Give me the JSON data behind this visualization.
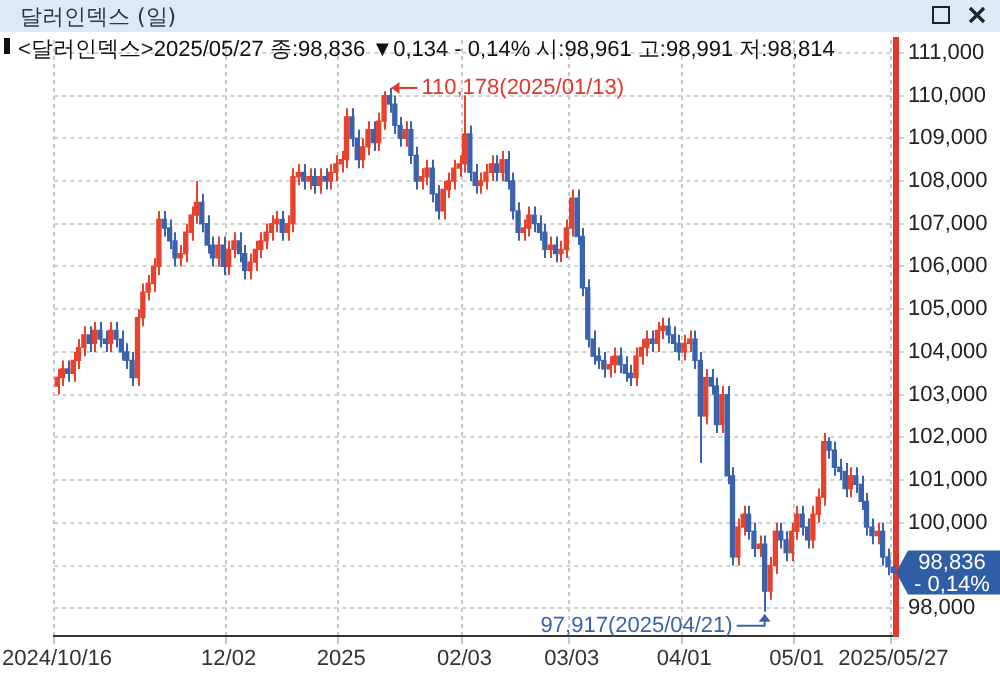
{
  "chart_data": {
    "type": "candlestick",
    "title": "달러인덱스 (일)",
    "subtitle": "<달러인덱스>2025/05/27 종:98,836 ▼0,134 - 0,14% 시:98,961 고:98,991 저:98,814",
    "categories": [
      "2024/10/16",
      null,
      null,
      null,
      null,
      null,
      null,
      null,
      null,
      null,
      null,
      null,
      null,
      null,
      null,
      null,
      null,
      null,
      null,
      null,
      null,
      null,
      null,
      null,
      null,
      null,
      null,
      null,
      null,
      null,
      null,
      null,
      "12/02",
      null,
      null,
      null,
      null,
      null,
      null,
      null,
      null,
      null,
      null,
      null,
      null,
      null,
      null,
      null,
      null,
      null,
      null,
      null,
      null,
      "2025",
      null,
      null,
      null,
      null,
      null,
      null,
      null,
      null,
      null,
      null,
      null,
      null,
      null,
      null,
      null,
      null,
      null,
      null,
      null,
      null,
      null,
      null,
      "02/03",
      null,
      null,
      null,
      null,
      null,
      null,
      null,
      null,
      null,
      null,
      null,
      null,
      null,
      null,
      null,
      null,
      null,
      null,
      null,
      "03/03",
      null,
      null,
      null,
      null,
      null,
      null,
      null,
      null,
      null,
      null,
      null,
      null,
      null,
      null,
      null,
      null,
      null,
      null,
      null,
      null,
      "04/01",
      null,
      null,
      null,
      null,
      null,
      null,
      null,
      null,
      null,
      null,
      null,
      null,
      null,
      null,
      null,
      null,
      null,
      null,
      null,
      null,
      "05/01",
      null,
      null,
      null,
      null,
      null,
      null,
      null,
      null,
      null,
      null,
      null,
      null,
      null,
      null,
      null,
      null,
      null,
      "2025/05/27"
    ],
    "ohlc": [
      [
        103200,
        103600,
        103000,
        103400
      ],
      [
        103400,
        103800,
        103200,
        103600
      ],
      [
        103600,
        103800,
        103300,
        103500
      ],
      [
        103500,
        104000,
        103300,
        103800
      ],
      [
        103800,
        104300,
        103600,
        104100
      ],
      [
        104100,
        104600,
        103900,
        104400
      ],
      [
        104400,
        104600,
        104000,
        104200
      ],
      [
        104200,
        104700,
        104000,
        104500
      ],
      [
        104500,
        104700,
        104100,
        104300
      ],
      [
        104300,
        104500,
        104000,
        104200
      ],
      [
        104200,
        104700,
        104000,
        104500
      ],
      [
        104500,
        104700,
        104100,
        104300
      ],
      [
        104300,
        104500,
        103800,
        104000
      ],
      [
        104000,
        104200,
        103600,
        103800
      ],
      [
        103800,
        104000,
        103200,
        103400
      ],
      [
        103400,
        105000,
        103200,
        104800
      ],
      [
        104800,
        105600,
        104600,
        105400
      ],
      [
        105400,
        105800,
        105200,
        105600
      ],
      [
        105600,
        106200,
        105400,
        106000
      ],
      [
        106000,
        107300,
        105800,
        107100
      ],
      [
        107100,
        107300,
        106700,
        106900
      ],
      [
        106900,
        107100,
        106400,
        106600
      ],
      [
        106600,
        106800,
        106000,
        106200
      ],
      [
        106200,
        106500,
        106000,
        106300
      ],
      [
        106300,
        107000,
        106100,
        106800
      ],
      [
        106800,
        107400,
        106600,
        107200
      ],
      [
        107200,
        108000,
        107000,
        107500
      ],
      [
        107500,
        107700,
        106800,
        107000
      ],
      [
        107000,
        107200,
        106300,
        106500
      ],
      [
        106500,
        106700,
        106000,
        106200
      ],
      [
        106200,
        106700,
        106000,
        106500
      ],
      [
        106500,
        106700,
        105800,
        106000
      ],
      [
        106000,
        106600,
        105800,
        106400
      ],
      [
        106400,
        106800,
        106200,
        106600
      ],
      [
        106600,
        106800,
        106100,
        106300
      ],
      [
        106300,
        106500,
        105700,
        105900
      ],
      [
        105900,
        106300,
        105700,
        106100
      ],
      [
        106100,
        106600,
        105900,
        106400
      ],
      [
        106400,
        106800,
        106200,
        106600
      ],
      [
        106600,
        107000,
        106400,
        106800
      ],
      [
        106800,
        107200,
        106600,
        107000
      ],
      [
        107000,
        107300,
        106800,
        107100
      ],
      [
        107100,
        107300,
        106600,
        106800
      ],
      [
        106800,
        107200,
        106600,
        107000
      ],
      [
        107000,
        108300,
        106800,
        108100
      ],
      [
        108100,
        108400,
        107900,
        108200
      ],
      [
        108200,
        108400,
        107800,
        108000
      ],
      [
        108000,
        108300,
        107800,
        108100
      ],
      [
        108100,
        108300,
        107700,
        107900
      ],
      [
        107900,
        108300,
        107700,
        108100
      ],
      [
        108100,
        108300,
        107800,
        108000
      ],
      [
        108000,
        108400,
        107800,
        108200
      ],
      [
        108200,
        108600,
        108000,
        108400
      ],
      [
        108400,
        108700,
        108200,
        108500
      ],
      [
        108500,
        109700,
        108300,
        109500
      ],
      [
        109500,
        109700,
        108800,
        109000
      ],
      [
        109000,
        109200,
        108300,
        108500
      ],
      [
        108500,
        109000,
        108300,
        108800
      ],
      [
        108800,
        109400,
        108600,
        109200
      ],
      [
        109200,
        109400,
        108700,
        108900
      ],
      [
        108900,
        109600,
        108700,
        109400
      ],
      [
        109400,
        110100,
        109200,
        110000
      ],
      [
        110000,
        110178,
        109600,
        109800
      ],
      [
        109800,
        110000,
        109100,
        109300
      ],
      [
        109300,
        109500,
        108800,
        109000
      ],
      [
        109000,
        109400,
        108800,
        109200
      ],
      [
        109200,
        109400,
        108400,
        108600
      ],
      [
        108600,
        108800,
        107800,
        108000
      ],
      [
        108000,
        108300,
        107800,
        108100
      ],
      [
        108100,
        108500,
        107900,
        108300
      ],
      [
        108300,
        108500,
        107500,
        107700
      ],
      [
        107700,
        107900,
        107100,
        107300
      ],
      [
        107300,
        108000,
        107100,
        107800
      ],
      [
        107800,
        108200,
        107600,
        108000
      ],
      [
        108000,
        108500,
        107800,
        108300
      ],
      [
        108300,
        108600,
        108100,
        108400
      ],
      [
        108400,
        110000,
        108200,
        109100
      ],
      [
        109100,
        109300,
        108000,
        108200
      ],
      [
        108200,
        108400,
        107700,
        107900
      ],
      [
        107900,
        108200,
        107700,
        108000
      ],
      [
        108000,
        108400,
        107800,
        108200
      ],
      [
        108200,
        108600,
        108000,
        108400
      ],
      [
        108400,
        108600,
        108000,
        108200
      ],
      [
        108200,
        108700,
        108000,
        108500
      ],
      [
        108500,
        108700,
        107800,
        108000
      ],
      [
        108000,
        108200,
        107100,
        107300
      ],
      [
        107300,
        107500,
        106600,
        106800
      ],
      [
        106800,
        107100,
        106600,
        106900
      ],
      [
        106900,
        107400,
        106700,
        107200
      ],
      [
        107200,
        107400,
        106800,
        107000
      ],
      [
        107000,
        107200,
        106600,
        106800
      ],
      [
        106800,
        107000,
        106200,
        106400
      ],
      [
        106400,
        106700,
        106200,
        106500
      ],
      [
        106500,
        106700,
        106100,
        106300
      ],
      [
        106300,
        106600,
        106100,
        106400
      ],
      [
        106400,
        107100,
        106200,
        106900
      ],
      [
        106900,
        107800,
        106700,
        107600
      ],
      [
        107600,
        107800,
        106500,
        106700
      ],
      [
        106700,
        106900,
        105300,
        105500
      ],
      [
        105500,
        105700,
        104100,
        104300
      ],
      [
        104300,
        104500,
        103700,
        103900
      ],
      [
        103900,
        104100,
        103600,
        103800
      ],
      [
        103800,
        104000,
        103400,
        103600
      ],
      [
        103600,
        103900,
        103400,
        103700
      ],
      [
        103700,
        104100,
        103500,
        103900
      ],
      [
        103900,
        104100,
        103500,
        103700
      ],
      [
        103700,
        103900,
        103300,
        103500
      ],
      [
        103500,
        103700,
        103200,
        103400
      ],
      [
        103400,
        104100,
        103200,
        103900
      ],
      [
        103900,
        104300,
        103700,
        104100
      ],
      [
        104100,
        104500,
        103900,
        104300
      ],
      [
        104300,
        104500,
        104000,
        104200
      ],
      [
        104200,
        104700,
        104000,
        104500
      ],
      [
        104500,
        104800,
        104300,
        104600
      ],
      [
        104600,
        104800,
        104200,
        104400
      ],
      [
        104400,
        104600,
        104000,
        104200
      ],
      [
        104200,
        104400,
        103800,
        104000
      ],
      [
        104000,
        104400,
        103800,
        104200
      ],
      [
        104200,
        104500,
        104000,
        104300
      ],
      [
        104300,
        104500,
        103600,
        103800
      ],
      [
        103800,
        104000,
        101400,
        102500
      ],
      [
        102500,
        103600,
        102300,
        103400
      ],
      [
        103400,
        103600,
        103000,
        103200
      ],
      [
        103200,
        103400,
        102100,
        102300
      ],
      [
        102300,
        103200,
        102100,
        103000
      ],
      [
        103000,
        103200,
        100900,
        101100
      ],
      [
        101100,
        101300,
        99000,
        99200
      ],
      [
        99200,
        100100,
        99000,
        99900
      ],
      [
        99900,
        100400,
        99700,
        100200
      ],
      [
        100200,
        100400,
        99600,
        99800
      ],
      [
        99800,
        100000,
        99200,
        99400
      ],
      [
        99400,
        99700,
        99200,
        99500
      ],
      [
        99500,
        99700,
        97917,
        98400
      ],
      [
        98400,
        99200,
        98200,
        99000
      ],
      [
        99000,
        100000,
        98800,
        99800
      ],
      [
        99800,
        100000,
        99400,
        99600
      ],
      [
        99600,
        99800,
        99100,
        99300
      ],
      [
        99300,
        100000,
        99100,
        99800
      ],
      [
        99800,
        100400,
        99600,
        100200
      ],
      [
        100200,
        100400,
        99700,
        99900
      ],
      [
        99900,
        100100,
        99400,
        99600
      ],
      [
        99600,
        100400,
        99400,
        100200
      ],
      [
        100200,
        100800,
        100000,
        100600
      ],
      [
        100600,
        102100,
        100400,
        101900
      ],
      [
        101900,
        102000,
        101500,
        101700
      ],
      [
        101700,
        101900,
        101100,
        101300
      ],
      [
        101300,
        101500,
        101000,
        101200
      ],
      [
        101200,
        101400,
        100600,
        100800
      ],
      [
        100800,
        101300,
        100600,
        101100
      ],
      [
        101100,
        101300,
        100700,
        100900
      ],
      [
        100900,
        101100,
        100300,
        100500
      ],
      [
        100500,
        100700,
        99700,
        99900
      ],
      [
        99900,
        100100,
        99500,
        99700
      ],
      [
        99700,
        100000,
        99500,
        99800
      ],
      [
        99800,
        100000,
        99000,
        99200
      ],
      [
        99200,
        99400,
        98770,
        98970
      ],
      [
        98961,
        98991,
        98814,
        98836
      ]
    ],
    "colors": [
      "#e8412c",
      "#e8412c",
      "#3b63ad",
      "#e8412c",
      "#e8412c",
      "#e8412c",
      "#3b63ad",
      "#e8412c",
      "#3b63ad",
      "#3b63ad",
      "#e8412c",
      "#3b63ad",
      "#3b63ad",
      "#3b63ad",
      "#3b63ad",
      "#e8412c",
      "#e8412c",
      "#e8412c",
      "#e8412c",
      "#e8412c",
      "#3b63ad",
      "#3b63ad",
      "#3b63ad",
      "#e8412c",
      "#e8412c",
      "#e8412c",
      "#e8412c",
      "#3b63ad",
      "#3b63ad",
      "#3b63ad",
      "#e8412c",
      "#3b63ad",
      "#e8412c",
      "#e8412c",
      "#3b63ad",
      "#3b63ad",
      "#e8412c",
      "#e8412c",
      "#e8412c",
      "#e8412c",
      "#e8412c",
      "#e8412c",
      "#3b63ad",
      "#e8412c",
      "#e8412c",
      "#e8412c",
      "#3b63ad",
      "#e8412c",
      "#3b63ad",
      "#e8412c",
      "#3b63ad",
      "#e8412c",
      "#e8412c",
      "#e8412c",
      "#e8412c",
      "#3b63ad",
      "#3b63ad",
      "#e8412c",
      "#e8412c",
      "#3b63ad",
      "#e8412c",
      "#e8412c",
      "#3b63ad",
      "#3b63ad",
      "#3b63ad",
      "#e8412c",
      "#3b63ad",
      "#3b63ad",
      "#e8412c",
      "#e8412c",
      "#3b63ad",
      "#3b63ad",
      "#e8412c",
      "#e8412c",
      "#e8412c",
      "#e8412c",
      "#e8412c",
      "#3b63ad",
      "#3b63ad",
      "#e8412c",
      "#e8412c",
      "#e8412c",
      "#3b63ad",
      "#e8412c",
      "#3b63ad",
      "#3b63ad",
      "#3b63ad",
      "#e8412c",
      "#e8412c",
      "#3b63ad",
      "#3b63ad",
      "#3b63ad",
      "#e8412c",
      "#3b63ad",
      "#e8412c",
      "#e8412c",
      "#e8412c",
      "#3b63ad",
      "#3b63ad",
      "#3b63ad",
      "#3b63ad",
      "#3b63ad",
      "#3b63ad",
      "#e8412c",
      "#e8412c",
      "#3b63ad",
      "#3b63ad",
      "#3b63ad",
      "#e8412c",
      "#e8412c",
      "#e8412c",
      "#3b63ad",
      "#e8412c",
      "#e8412c",
      "#3b63ad",
      "#3b63ad",
      "#3b63ad",
      "#e8412c",
      "#e8412c",
      "#3b63ad",
      "#3b63ad",
      "#e8412c",
      "#3b63ad",
      "#3b63ad",
      "#e8412c",
      "#3b63ad",
      "#3b63ad",
      "#e8412c",
      "#e8412c",
      "#3b63ad",
      "#3b63ad",
      "#e8412c",
      "#3b63ad",
      "#e8412c",
      "#e8412c",
      "#3b63ad",
      "#3b63ad",
      "#e8412c",
      "#e8412c",
      "#3b63ad",
      "#3b63ad",
      "#e8412c",
      "#e8412c",
      "#e8412c",
      "#3b63ad",
      "#3b63ad",
      "#3b63ad",
      "#3b63ad",
      "#e8412c",
      "#3b63ad",
      "#3b63ad",
      "#3b63ad",
      "#3b63ad",
      "#e8412c",
      "#3b63ad",
      "#3b63ad",
      "#3b63ad"
    ],
    "ylim": [
      97350,
      111300
    ],
    "yticks": [
      {
        "value": 98000,
        "label": "98,000"
      },
      {
        "value": 99000,
        "label": null
      },
      {
        "value": 100000,
        "label": "100,000"
      },
      {
        "value": 101000,
        "label": "101,000"
      },
      {
        "value": 102000,
        "label": "102,000"
      },
      {
        "value": 103000,
        "label": "103,000"
      },
      {
        "value": 104000,
        "label": "104,000"
      },
      {
        "value": 105000,
        "label": "105,000"
      },
      {
        "value": 106000,
        "label": "106,000"
      },
      {
        "value": 107000,
        "label": "107,000"
      },
      {
        "value": 108000,
        "label": "108,000"
      },
      {
        "value": 109000,
        "label": "109,000"
      },
      {
        "value": 110000,
        "label": "110,000"
      },
      {
        "value": 111000,
        "label": "111,000"
      }
    ],
    "grid": true,
    "annotations": [
      "110,178(2025/01/13)",
      "97,917(2025/04/21)",
      "98,836 - 0,14%"
    ]
  }
}
